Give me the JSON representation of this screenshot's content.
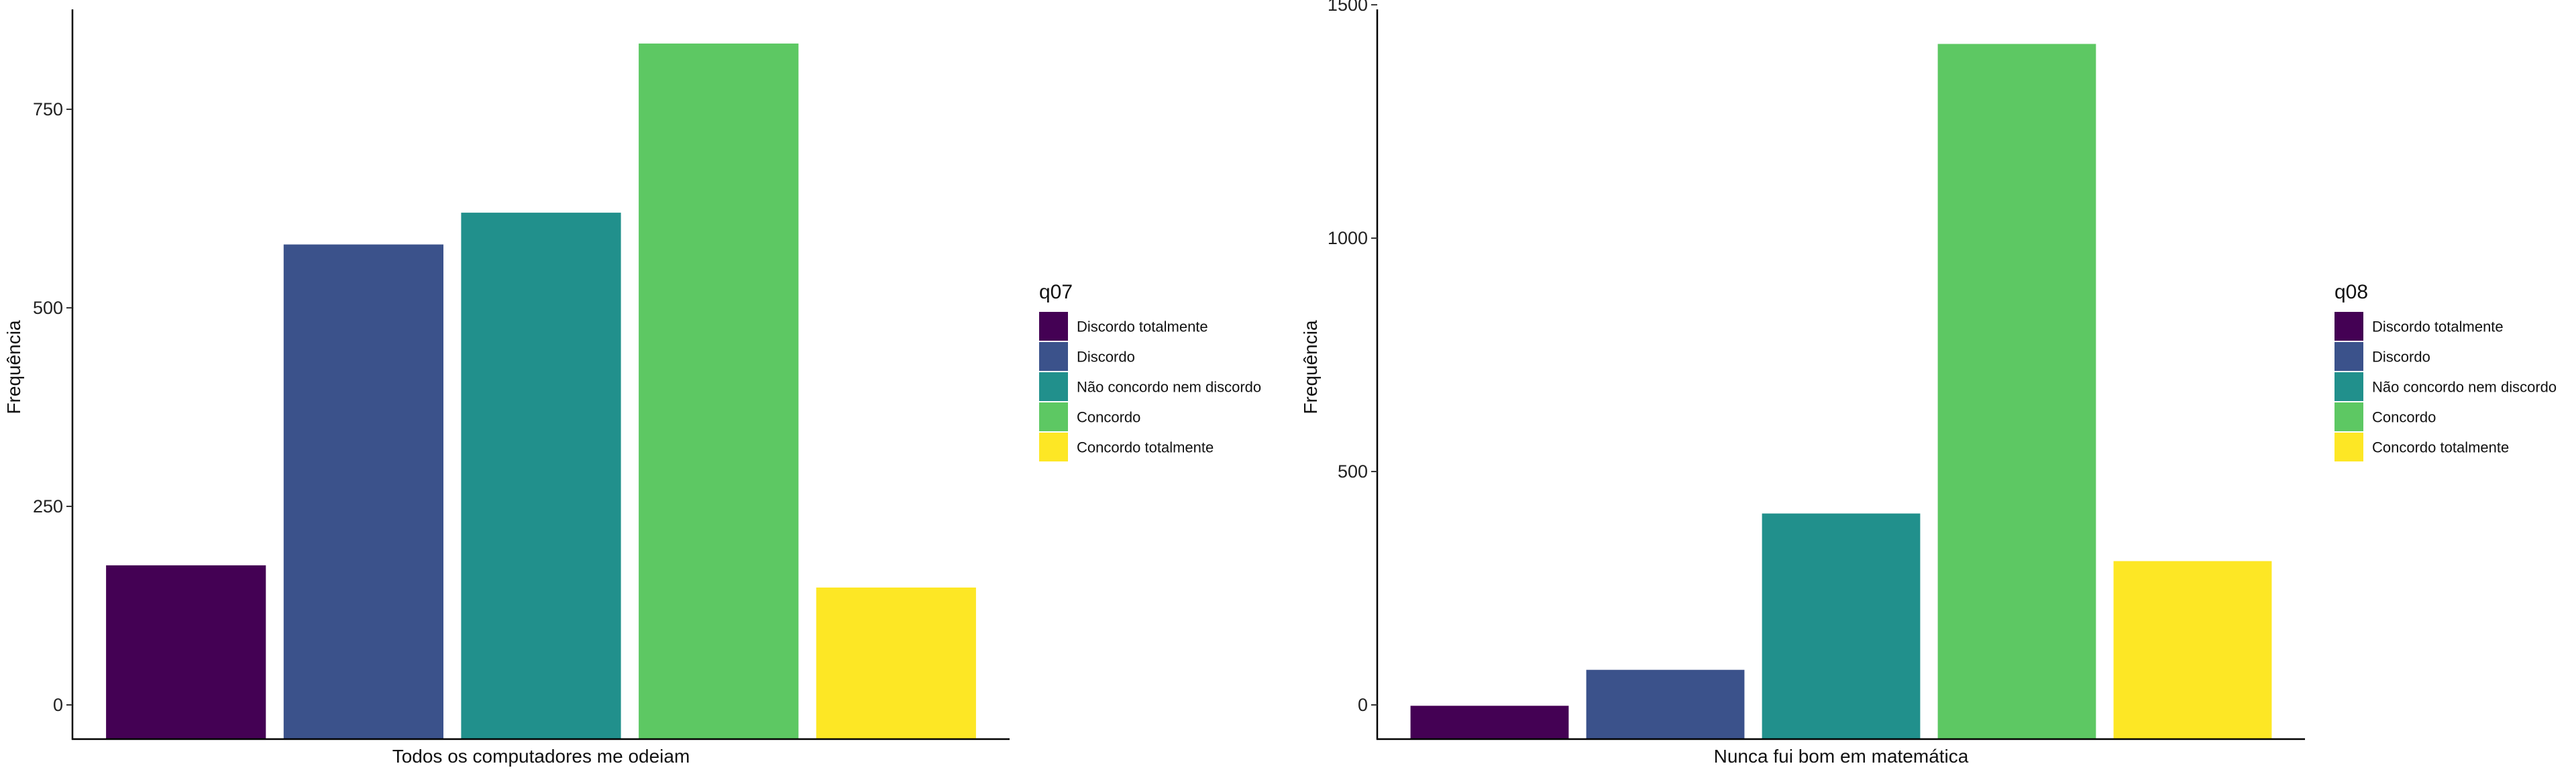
{
  "chart_data": [
    {
      "type": "bar",
      "categories": [
        "Discordo totalmente",
        "Discordo",
        "Não concordo nem discordo",
        "Concordo",
        "Concordo totalmente"
      ],
      "values": [
        218,
        622,
        662,
        875,
        190
      ],
      "colors": [
        "#440154",
        "#3B528B",
        "#21908C",
        "#5DC863",
        "#FDE725"
      ],
      "title": "",
      "xlabel": "Todos os computadores me odeiam",
      "ylabel": "Frequência",
      "ylim": [
        0,
        918
      ],
      "yticks": [
        0,
        250,
        500,
        750
      ],
      "ytick_labels": [
        "0",
        "250",
        "500",
        "750"
      ],
      "legend_title": "q07",
      "legend_position": "right",
      "grid": false
    },
    {
      "type": "bar",
      "categories": [
        "Discordo totalmente",
        "Discordo",
        "Não concordo nem discordo",
        "Concordo",
        "Concordo totalmente"
      ],
      "values": [
        70,
        147,
        482,
        1488,
        380
      ],
      "colors": [
        "#440154",
        "#3B528B",
        "#21908C",
        "#5DC863",
        "#FDE725"
      ],
      "title": "",
      "xlabel": "Nunca fui bom em matemática",
      "ylabel": "Frequência",
      "ylim": [
        0,
        1562
      ],
      "yticks": [
        0,
        500,
        1000,
        1500
      ],
      "ytick_labels": [
        "0",
        "500",
        "1000",
        "1500"
      ],
      "legend_title": "q08",
      "legend_position": "right",
      "grid": false
    }
  ]
}
